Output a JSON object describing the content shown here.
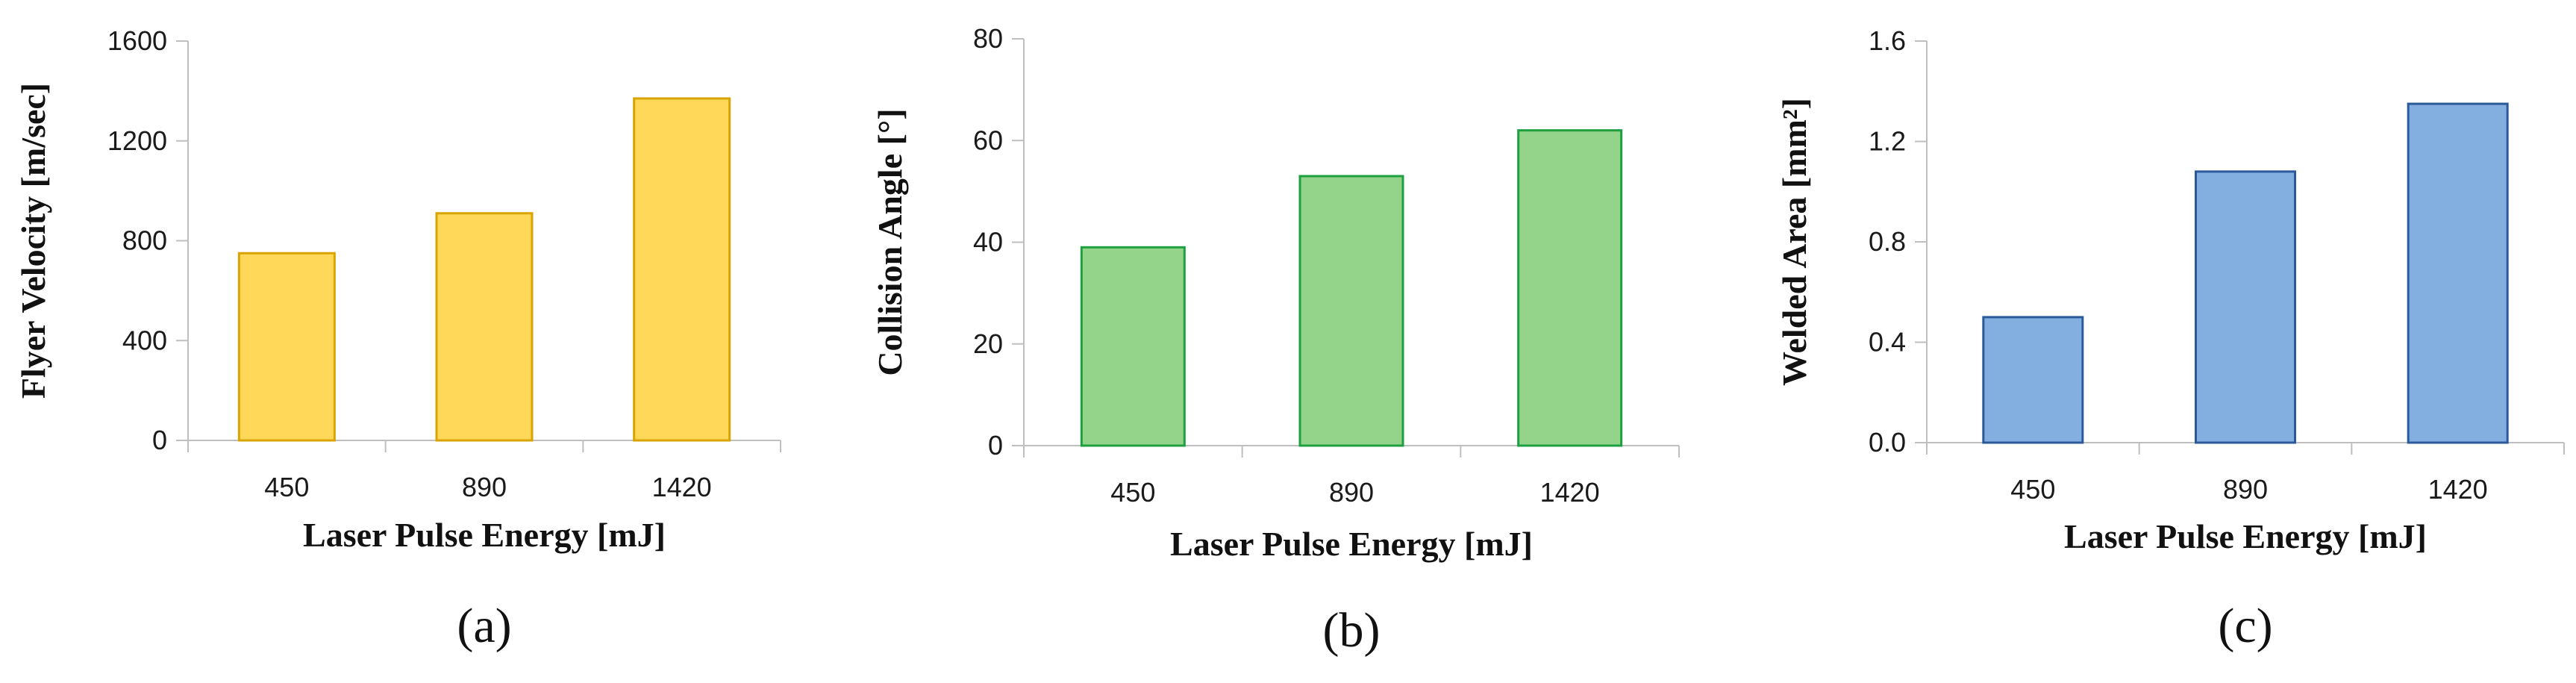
{
  "chart_data": [
    {
      "type": "bar",
      "panel_label": "(a)",
      "categories": [
        "450",
        "890",
        "1420"
      ],
      "values": [
        750,
        910,
        1370
      ],
      "xlabel": "Laser Pulse Energy [mJ]",
      "ylabel": "Flyer Velocity [m/sec]",
      "ylim": [
        0,
        1600
      ],
      "yticks": [
        "0",
        "400",
        "800",
        "1200",
        "1600"
      ],
      "fill_color": "#FFD85A",
      "stroke_color": "#D9A400",
      "grid": false,
      "legend": "none"
    },
    {
      "type": "bar",
      "panel_label": "(b)",
      "categories": [
        "450",
        "890",
        "1420"
      ],
      "values": [
        39,
        53,
        62
      ],
      "xlabel": "Laser Pulse Energy [mJ]",
      "ylabel": "Collision Angle [°]",
      "ylim": [
        0,
        80
      ],
      "yticks": [
        "0",
        "20",
        "40",
        "60",
        "80"
      ],
      "fill_color": "#93D38A",
      "stroke_color": "#1FA040",
      "grid": false,
      "legend": "none"
    },
    {
      "type": "bar",
      "panel_label": "(c)",
      "categories": [
        "450",
        "890",
        "1420"
      ],
      "values": [
        0.5,
        1.08,
        1.35
      ],
      "xlabel": "Laser Pulse Energy [mJ]",
      "ylabel": "Welded Area [mm²]",
      "ylim": [
        0,
        1.6
      ],
      "yticks": [
        "0.0",
        "0.4",
        "0.8",
        "1.2",
        "1.6"
      ],
      "fill_color": "#82AEE0",
      "stroke_color": "#2A5A9A",
      "grid": false,
      "legend": "none"
    }
  ]
}
